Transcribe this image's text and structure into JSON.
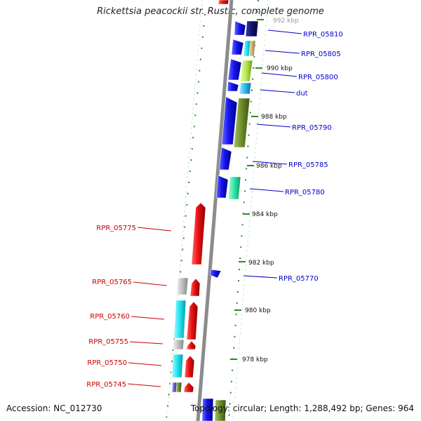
{
  "header": {
    "title": "Rickettsia peacockii str. Rustic, complete genome"
  },
  "footer": {
    "accession": "Accession: NC_012730",
    "summary": "Topology: circular; Length: 1,288,492 bp; Genes: 964"
  },
  "scale_labels": [
    "992 kbp",
    "990 kbp",
    "988 kbp",
    "986 kbp",
    "984 kbp",
    "982 kbp",
    "980 kbp",
    "978 kbp"
  ],
  "genes_right": [
    "RPR_05810",
    "RPR_05805",
    "RPR_05800",
    "dut",
    "RPR_05790",
    "RPR_05785",
    "RPR_05780",
    "RPR_05770"
  ],
  "genes_left": [
    "RPR_05775",
    "RPR_05765",
    "RPR_05760",
    "RPR_05755",
    "RPR_05750",
    "RPR_05745"
  ],
  "colors": {
    "forward_strand": "#1111ee",
    "reverse_strand": "#ee1111",
    "forward_label": "#0000cc",
    "reverse_label": "#cc0000",
    "backbone": "#9a9a9a",
    "tick": "#2a8a2a",
    "cyan": "#22e6ee",
    "olive": "#6f8f2a",
    "grey": "#bbbbbb"
  }
}
